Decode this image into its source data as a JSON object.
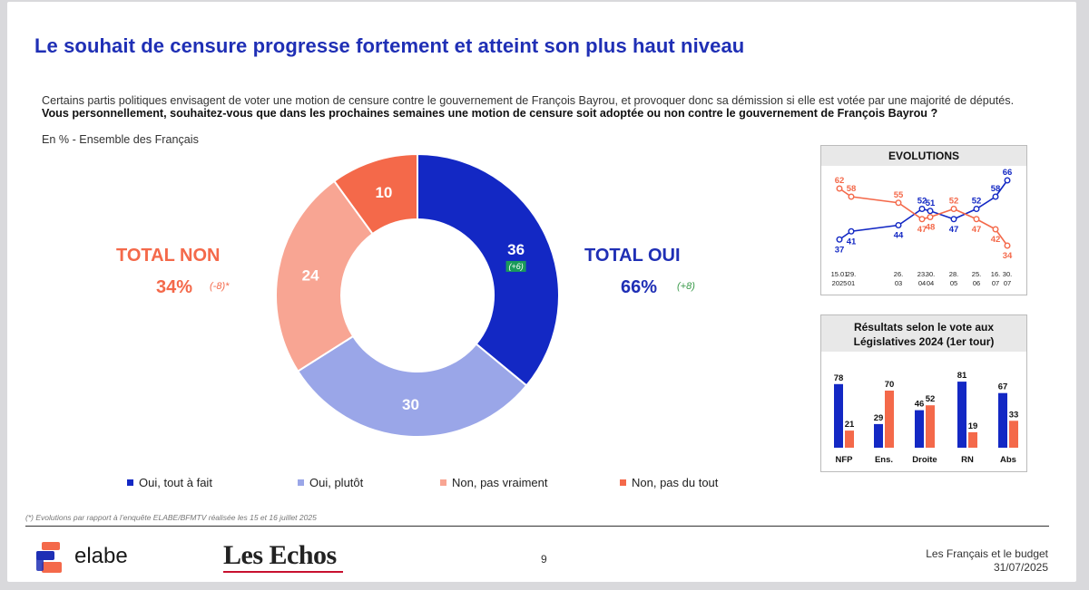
{
  "title": "Le souhait de censure progresse fortement et atteint son plus haut niveau",
  "question": {
    "intro": "Certains partis politiques envisagent de voter une motion de censure contre le gouvernement de François Bayrou, et provoquer donc sa démission si elle est votée par une majorité de députés.",
    "bold": "Vous personnellement, souhaitez-vous que dans les prochaines semaines une motion de censure soit adoptée ou non contre le gouvernement de François Bayrou ?",
    "subtitle": "En % - Ensemble des Français"
  },
  "totals": {
    "non_label": "TOTAL NON",
    "non_value": "34%",
    "non_change": "(-8)*",
    "oui_label": "TOTAL OUI",
    "oui_value": "66%",
    "oui_change": "(+8)"
  },
  "chart_data": [
    {
      "type": "pie",
      "categories": [
        "Oui, tout à fait",
        "Oui, plutôt",
        "Non, pas vraiment",
        "Non, pas du tout"
      ],
      "values": [
        36,
        30,
        24,
        10
      ],
      "colors": [
        "#1328c4",
        "#9aa6e8",
        "#f8a593",
        "#f4694a"
      ],
      "annotations": [
        {
          "category": "Oui, tout à fait",
          "text": "(+6)"
        }
      ]
    },
    {
      "type": "line",
      "title": "EVOLUTIONS",
      "x": [
        "15.01 2025",
        "29. 01",
        "26. 03",
        "23. 04",
        "30. 04",
        "28. 05",
        "25. 06",
        "16. 07",
        "30. 07"
      ],
      "series": [
        {
          "values": [
            37,
            41,
            44,
            52,
            51,
            47,
            52,
            58,
            66
          ],
          "color": "#1328c4"
        },
        {
          "values": [
            62,
            58,
            55,
            47,
            48,
            52,
            47,
            42,
            34
          ],
          "color": "#f4694a"
        }
      ]
    },
    {
      "type": "bar",
      "title": "Résultats selon le vote aux Législatives 2024 (1er tour)",
      "categories": [
        "NFP",
        "Ens.",
        "Droite",
        "RN",
        "Abs"
      ],
      "series": [
        {
          "values": [
            78,
            29,
            46,
            81,
            67
          ],
          "color": "#1328c4"
        },
        {
          "values": [
            21,
            70,
            52,
            19,
            33
          ],
          "color": "#f4694a"
        }
      ],
      "ylim": [
        0,
        100
      ]
    }
  ],
  "footnote": "(*) Evolutions par rapport à l’enquête ELABE/BFMTV réalisée les 15 et 16 juillet 2025",
  "footer": {
    "logo": "elabe",
    "partner": "Les Echos",
    "page": "9",
    "right_line1": "Les Français et le budget",
    "right_line2": "31/07/2025"
  }
}
